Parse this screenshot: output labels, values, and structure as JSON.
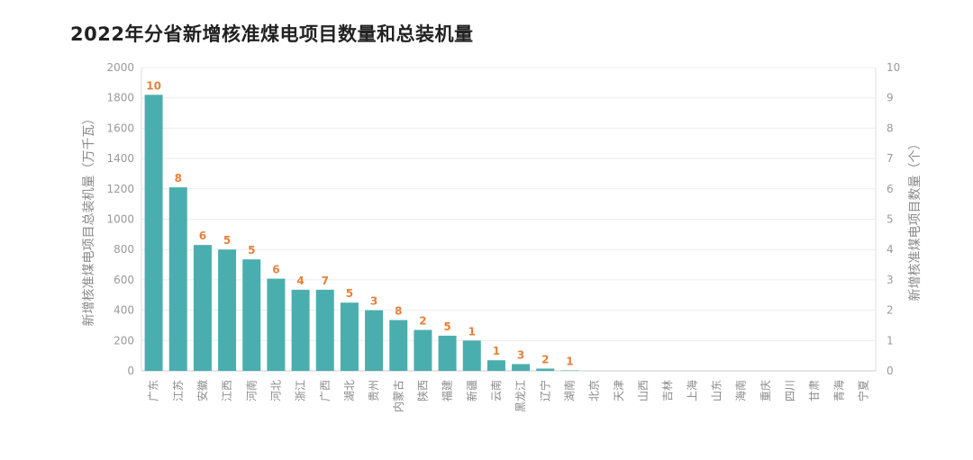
{
  "chart_data": {
    "type": "bar",
    "title": "2022年分省新增核准煤电项目数量和总装机量",
    "ylabel": "新增核准煤电项目总装机量（万千瓦）",
    "y2label": "新增核准煤电项目数量（个）",
    "ylim": [
      0,
      2000
    ],
    "y2lim": [
      0,
      10
    ],
    "yticks": [
      0,
      200,
      400,
      600,
      800,
      1000,
      1200,
      1400,
      1600,
      1800,
      2000
    ],
    "y2ticks": [
      0,
      1,
      2,
      3,
      4,
      5,
      6,
      7,
      8,
      9,
      10
    ],
    "grid": true,
    "bar_color": "#4baeae",
    "label_color": "#e8803a",
    "categories": [
      "广东",
      "江苏",
      "安徽",
      "江西",
      "河南",
      "河北",
      "浙江",
      "广西",
      "湖北",
      "贵州",
      "内蒙古",
      "陕西",
      "福建",
      "新疆",
      "云南",
      "黑龙江",
      "辽宁",
      "湖南",
      "北京",
      "天津",
      "山西",
      "吉林",
      "上海",
      "山东",
      "海南",
      "重庆",
      "四川",
      "甘肃",
      "青海",
      "宁夏"
    ],
    "series": [
      {
        "values": [
          1820,
          1210,
          830,
          800,
          735,
          608,
          535,
          535,
          450,
          400,
          335,
          270,
          232,
          200,
          70,
          45,
          15,
          3,
          0,
          0,
          0,
          0,
          0,
          0,
          0,
          0,
          0,
          0,
          0,
          0
        ]
      },
      {
        "values": [
          10,
          8,
          6,
          5,
          5,
          6,
          4,
          7,
          5,
          3,
          8,
          2,
          5,
          1,
          1,
          3,
          2,
          1,
          null,
          null,
          null,
          null,
          null,
          null,
          null,
          null,
          null,
          null,
          null,
          null
        ]
      }
    ]
  }
}
